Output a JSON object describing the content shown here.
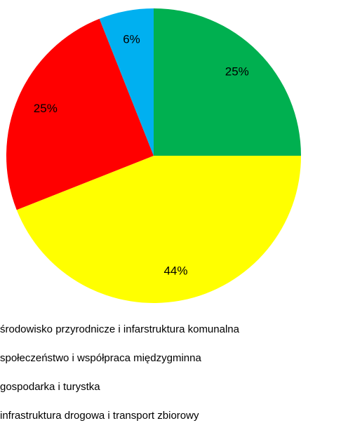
{
  "chart_data": {
    "type": "pie",
    "categories": [
      "środowisko przyrodnicze i infarstruktura komunalna",
      "społeczeństwo i współpraca międzygminna",
      "gospodarka i turystka",
      "infrastruktura drogowa i transport zbiorowy"
    ],
    "values": [
      25,
      44,
      25,
      6
    ],
    "value_labels": [
      "25%",
      "44%",
      "25%",
      "6%"
    ],
    "colors": [
      "#00b050",
      "#ffff00",
      "#ff0000",
      "#00b0f0"
    ]
  }
}
